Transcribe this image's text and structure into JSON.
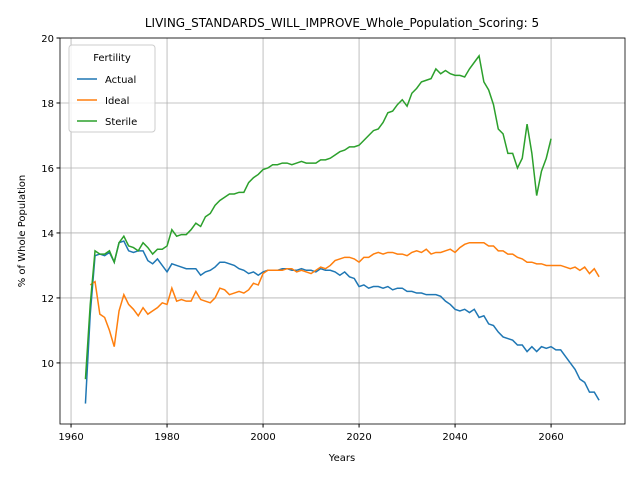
{
  "chart_data": {
    "type": "line",
    "title": "LIVING_STANDARDS_WILL_IMPROVE_Whole_Population_Scoring: 5",
    "x_label": "Years",
    "y_label": "% of Whole Population",
    "legend_title": "Fertility",
    "legend": "upper left",
    "grid": true,
    "xlim": [
      1957.7,
      2075.4
    ],
    "ylim": [
      8.12,
      20
    ],
    "xticks": [
      1960,
      1980,
      2000,
      2020,
      2040,
      2060
    ],
    "yticks": [
      10,
      12,
      14,
      16,
      18,
      20
    ],
    "x": [
      1963,
      1964,
      1965,
      1966,
      1967,
      1968,
      1969,
      1970,
      1971,
      1972,
      1973,
      1974,
      1975,
      1976,
      1977,
      1978,
      1979,
      1980,
      1981,
      1982,
      1983,
      1984,
      1985,
      1986,
      1987,
      1988,
      1989,
      1990,
      1991,
      1992,
      1993,
      1994,
      1995,
      1996,
      1997,
      1998,
      1999,
      2000,
      2001,
      2002,
      2003,
      2004,
      2005,
      2006,
      2007,
      2008,
      2009,
      2010,
      2011,
      2012,
      2013,
      2014,
      2015,
      2016,
      2017,
      2018,
      2019,
      2020,
      2021,
      2022,
      2023,
      2024,
      2025,
      2026,
      2027,
      2028,
      2029,
      2030,
      2031,
      2032,
      2033,
      2034,
      2035,
      2036,
      2037,
      2038,
      2039,
      2040,
      2041,
      2042,
      2043,
      2044,
      2045,
      2046,
      2047,
      2048,
      2049,
      2050,
      2051,
      2052,
      2053,
      2054,
      2055,
      2056,
      2057,
      2058,
      2059,
      2060,
      2061,
      2062,
      2063,
      2064,
      2065,
      2066,
      2067,
      2068,
      2069,
      2070
    ],
    "series": [
      {
        "name": "Actual",
        "color": "#1f77b4",
        "values": [
          8.75,
          11.5,
          13.3,
          13.35,
          13.3,
          13.4,
          13.1,
          13.7,
          13.75,
          13.45,
          13.4,
          13.45,
          13.45,
          13.15,
          13.05,
          13.2,
          13.0,
          12.8,
          13.05,
          13.0,
          12.95,
          12.9,
          12.9,
          12.9,
          12.7,
          12.8,
          12.85,
          12.95,
          13.1,
          13.1,
          13.05,
          13.0,
          12.9,
          12.85,
          12.75,
          12.8,
          12.7,
          12.8,
          12.85,
          12.85,
          12.85,
          12.9,
          12.9,
          12.85,
          12.85,
          12.9,
          12.85,
          12.85,
          12.8,
          12.9,
          12.85,
          12.85,
          12.8,
          12.7,
          12.8,
          12.65,
          12.6,
          12.35,
          12.4,
          12.3,
          12.35,
          12.35,
          12.3,
          12.35,
          12.25,
          12.3,
          12.3,
          12.2,
          12.2,
          12.15,
          12.15,
          12.1,
          12.1,
          12.1,
          12.05,
          11.9,
          11.8,
          11.65,
          11.6,
          11.65,
          11.55,
          11.65,
          11.4,
          11.45,
          11.2,
          11.15,
          10.95,
          10.8,
          10.75,
          10.7,
          10.55,
          10.55,
          10.35,
          10.5,
          10.35,
          10.5,
          10.45,
          10.5,
          10.4,
          10.4,
          10.2,
          10.0,
          9.8,
          9.5,
          9.4,
          9.1,
          9.1,
          8.85
        ]
      },
      {
        "name": "Ideal",
        "color": "#ff7f0e",
        "values": [
          null,
          12.4,
          12.5,
          11.5,
          11.4,
          11.0,
          10.5,
          11.6,
          12.1,
          11.8,
          11.65,
          11.45,
          11.7,
          11.5,
          11.6,
          11.7,
          11.85,
          11.8,
          12.3,
          11.9,
          11.95,
          11.9,
          11.9,
          12.2,
          11.95,
          11.9,
          11.85,
          12.0,
          12.3,
          12.25,
          12.1,
          12.15,
          12.2,
          12.15,
          12.25,
          12.45,
          12.4,
          12.75,
          12.85,
          12.85,
          12.85,
          12.85,
          12.9,
          12.9,
          12.8,
          12.85,
          12.8,
          12.75,
          12.85,
          12.95,
          12.9,
          13.0,
          13.15,
          13.2,
          13.25,
          13.25,
          13.2,
          13.1,
          13.25,
          13.25,
          13.35,
          13.4,
          13.35,
          13.4,
          13.4,
          13.35,
          13.35,
          13.3,
          13.4,
          13.45,
          13.4,
          13.5,
          13.35,
          13.4,
          13.4,
          13.45,
          13.5,
          13.4,
          13.55,
          13.65,
          13.7,
          13.7,
          13.7,
          13.7,
          13.6,
          13.6,
          13.45,
          13.45,
          13.35,
          13.35,
          13.25,
          13.2,
          13.1,
          13.1,
          13.05,
          13.05,
          13.0,
          13.0,
          13.0,
          13.0,
          12.95,
          12.9,
          12.95,
          12.85,
          12.95,
          12.75,
          12.9,
          12.65
        ]
      },
      {
        "name": "Sterile",
        "color": "#2ca02c",
        "values": [
          9.5,
          11.8,
          13.45,
          13.35,
          13.35,
          13.45,
          13.1,
          13.7,
          13.9,
          13.6,
          13.55,
          13.45,
          13.7,
          13.55,
          13.35,
          13.5,
          13.5,
          13.6,
          14.1,
          13.9,
          13.95,
          13.95,
          14.1,
          14.3,
          14.2,
          14.5,
          14.6,
          14.85,
          15.0,
          15.1,
          15.2,
          15.2,
          15.25,
          15.25,
          15.55,
          15.7,
          15.8,
          15.95,
          16.0,
          16.1,
          16.1,
          16.15,
          16.15,
          16.1,
          16.15,
          16.2,
          16.15,
          16.15,
          16.15,
          16.25,
          16.25,
          16.3,
          16.4,
          16.5,
          16.55,
          16.65,
          16.65,
          16.7,
          16.85,
          17.0,
          17.15,
          17.2,
          17.4,
          17.7,
          17.75,
          17.95,
          18.1,
          17.9,
          18.3,
          18.45,
          18.65,
          18.7,
          18.75,
          19.05,
          18.9,
          19.0,
          18.9,
          18.85,
          18.85,
          18.8,
          19.05,
          19.25,
          19.45,
          18.65,
          18.4,
          17.95,
          17.2,
          17.05,
          16.45,
          16.45,
          16.0,
          16.3,
          17.35,
          16.45,
          15.15,
          15.9,
          16.3,
          16.9,
          null,
          null,
          null,
          null,
          null,
          null,
          null,
          null,
          null,
          null
        ]
      }
    ]
  }
}
